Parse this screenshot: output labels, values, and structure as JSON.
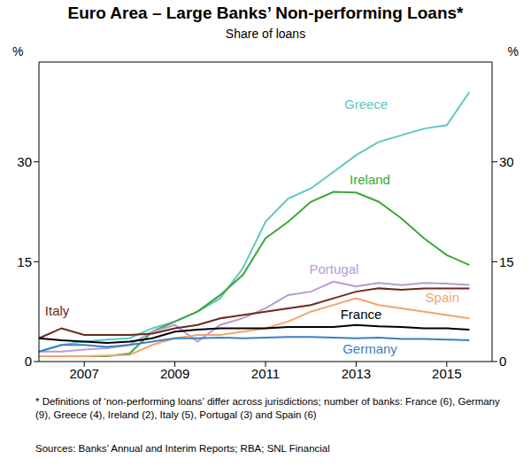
{
  "chart_data": {
    "type": "line",
    "title": "Euro Area – Large Banks’ Non-performing Loans*",
    "subtitle": "Share of loans",
    "ylabel": "%",
    "x": [
      2006,
      2006.5,
      2007,
      2007.5,
      2008,
      2008.5,
      2009,
      2009.5,
      2010,
      2010.5,
      2011,
      2011.5,
      2012,
      2012.5,
      2013,
      2013.5,
      2014,
      2014.5,
      2015,
      2015.5
    ],
    "xlim": [
      2006,
      2016
    ],
    "xticks": [
      2007,
      2009,
      2011,
      2013,
      2015
    ],
    "ylim": [
      0,
      45
    ],
    "yticks": [
      0,
      15,
      30
    ],
    "grid": false,
    "series": [
      {
        "name": "Greece",
        "color": "#5cc8c0",
        "values": [
          1.5,
          2.5,
          3.0,
          3.3,
          3.5,
          5.0,
          6.0,
          7.5,
          9.5,
          14.0,
          21.0,
          24.5,
          26.0,
          28.5,
          31.0,
          33.0,
          34.0,
          35.0,
          35.5,
          40.5
        ]
      },
      {
        "name": "Ireland",
        "color": "#3aa83a",
        "values": [
          0.8,
          0.8,
          0.8,
          0.8,
          1.2,
          4.5,
          6.0,
          7.5,
          10.0,
          13.0,
          18.5,
          21.0,
          24.0,
          25.5,
          25.4,
          24.0,
          21.5,
          18.5,
          16.0,
          14.5
        ]
      },
      {
        "name": "Portugal",
        "color": "#b79ad6",
        "values": [
          1.5,
          1.5,
          1.8,
          2.0,
          2.5,
          4.5,
          5.5,
          3.0,
          5.5,
          6.5,
          8.0,
          10.0,
          10.5,
          12.0,
          11.3,
          11.8,
          11.5,
          11.8,
          11.7,
          11.5
        ]
      },
      {
        "name": "Italy",
        "color": "#6b2a1a",
        "values": [
          3.5,
          5.0,
          4.0,
          4.0,
          4.0,
          4.2,
          5.0,
          5.5,
          6.5,
          7.0,
          7.5,
          8.0,
          8.5,
          9.5,
          10.5,
          11.0,
          10.8,
          11.0,
          11.0,
          11.0
        ]
      },
      {
        "name": "Spain",
        "color": "#f4a36e",
        "values": [
          0.8,
          0.8,
          0.8,
          0.9,
          1.0,
          2.5,
          3.5,
          4.0,
          4.0,
          4.5,
          5.0,
          6.0,
          7.5,
          8.5,
          9.5,
          8.5,
          8.0,
          7.5,
          7.0,
          6.5
        ]
      },
      {
        "name": "France",
        "color": "#000000",
        "values": [
          3.5,
          3.2,
          3.0,
          2.8,
          3.0,
          3.5,
          4.5,
          4.8,
          5.0,
          5.0,
          5.0,
          5.2,
          5.2,
          5.2,
          5.5,
          5.3,
          5.2,
          5.0,
          5.0,
          4.8
        ]
      },
      {
        "name": "Germany",
        "color": "#3a7fc4",
        "values": [
          1.5,
          2.5,
          2.5,
          2.2,
          2.5,
          3.0,
          3.5,
          3.5,
          3.6,
          3.5,
          3.6,
          3.7,
          3.7,
          3.6,
          3.5,
          3.6,
          3.4,
          3.4,
          3.3,
          3.2
        ]
      }
    ],
    "footnote": "*   Definitions of ‘non-performing loans’ differ across jurisdictions; number of banks: France (6), Germany (9), Greece (4), Ireland (2), Italy (5), Portugal (3) and Spain (6)",
    "source": "Sources: Banks’ Annual and Interim Reports; RBA; SNL Financial"
  }
}
